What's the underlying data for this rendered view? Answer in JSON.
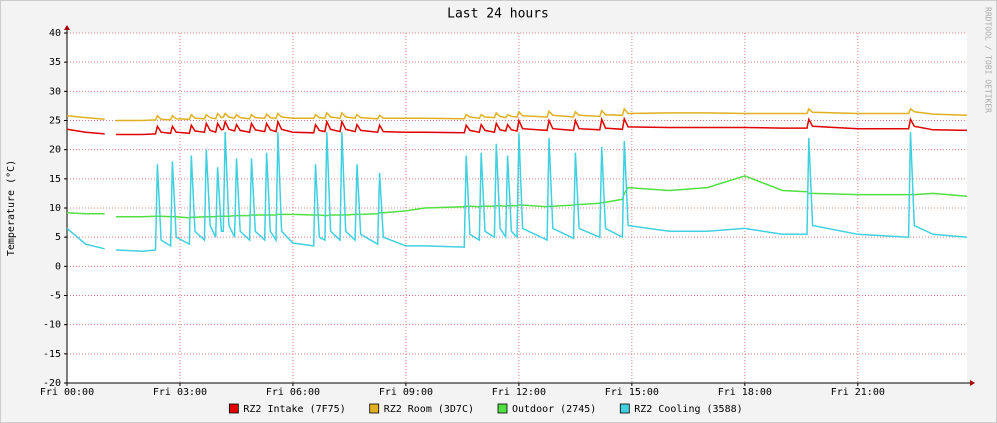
{
  "chart_data": {
    "type": "line",
    "title": "Last 24 hours",
    "y_label": "Temperature (°C)",
    "watermark": "RRDTOOL / TOBI OETIKER",
    "x": [
      0,
      0.5,
      1.0,
      1.1,
      1.3,
      2.0,
      2.35,
      2.4,
      2.5,
      2.75,
      2.8,
      2.9,
      3.25,
      3.3,
      3.4,
      3.65,
      3.7,
      3.8,
      3.95,
      4.0,
      4.1,
      4.15,
      4.2,
      4.3,
      4.45,
      4.5,
      4.6,
      4.85,
      4.9,
      5.0,
      5.25,
      5.3,
      5.4,
      5.55,
      5.6,
      5.7,
      6.0,
      6.55,
      6.6,
      6.7,
      6.85,
      6.9,
      7.0,
      7.25,
      7.3,
      7.4,
      7.65,
      7.7,
      7.8,
      8.25,
      8.3,
      8.4,
      9.0,
      9.5,
      10.55,
      10.6,
      10.7,
      10.95,
      11.0,
      11.1,
      11.35,
      11.4,
      11.5,
      11.65,
      11.7,
      11.8,
      11.95,
      12.0,
      12.1,
      12.75,
      12.8,
      12.9,
      13.45,
      13.5,
      13.6,
      14.15,
      14.2,
      14.3,
      14.75,
      14.8,
      14.9,
      16.0,
      17.0,
      18.0,
      19.0,
      19.65,
      19.7,
      19.8,
      21.0,
      22.35,
      22.4,
      22.5,
      23.0,
      23.9
    ],
    "series": [
      {
        "name": "RZ2 Intake (7F75)",
        "color": "#e00000",
        "values": [
          23.5,
          23,
          22.7,
          null,
          22.6,
          22.6,
          22.7,
          24,
          23,
          22.8,
          24,
          23,
          22.8,
          24.2,
          23.2,
          23,
          24.5,
          23.3,
          23,
          24.5,
          23.4,
          23.5,
          24.8,
          23.5,
          23.2,
          24.3,
          23.3,
          23,
          24.5,
          23.4,
          23.1,
          24.5,
          23.4,
          23.1,
          24.8,
          23.5,
          23,
          22.9,
          24.3,
          23.3,
          23.1,
          24.8,
          23.5,
          23.1,
          24.8,
          23.5,
          23.1,
          24.3,
          23.3,
          23,
          24.2,
          23.1,
          23,
          23,
          22.9,
          24.2,
          23.3,
          23,
          24.3,
          23.3,
          23,
          24.5,
          23.4,
          23.2,
          24.3,
          23.4,
          23.2,
          25,
          23.6,
          23.3,
          25,
          23.6,
          23.3,
          25,
          23.6,
          23.4,
          25.2,
          23.7,
          23.5,
          25.3,
          23.9,
          23.8,
          23.8,
          23.8,
          23.7,
          23.7,
          25.2,
          24,
          23.6,
          23.6,
          25.2,
          24,
          23.4,
          23.3
        ]
      },
      {
        "name": "RZ2 Room (3D7C)",
        "color": "#e0b020",
        "values": [
          25.8,
          25.5,
          25.2,
          null,
          25,
          25,
          25.1,
          25.8,
          25.2,
          25.1,
          25.8,
          25.3,
          25.2,
          26,
          25.4,
          25.3,
          26,
          25.5,
          25.3,
          26.2,
          25.5,
          25.6,
          26.2,
          25.6,
          25.4,
          26,
          25.5,
          25.3,
          26,
          25.5,
          25.4,
          26.1,
          25.5,
          25.4,
          26.2,
          25.6,
          25.4,
          25.4,
          26,
          25.5,
          25.4,
          26.3,
          25.6,
          25.4,
          26.3,
          25.6,
          25.4,
          26,
          25.5,
          25.3,
          25.9,
          25.4,
          25.4,
          25.4,
          25.3,
          26,
          25.6,
          25.4,
          26,
          25.6,
          25.5,
          26.3,
          25.7,
          25.5,
          26,
          25.7,
          25.6,
          26.5,
          25.8,
          25.6,
          26.6,
          25.9,
          25.6,
          26.5,
          25.9,
          25.7,
          26.7,
          26,
          25.9,
          27,
          26.2,
          26.3,
          26.3,
          26.2,
          26.2,
          26.2,
          27,
          26.4,
          26.2,
          26.2,
          27,
          26.5,
          26.1,
          25.9
        ]
      },
      {
        "name": "Outdoor (2745)",
        "color": "#50e040",
        "values": [
          9.2,
          9,
          9,
          null,
          8.5,
          8.5,
          8.6,
          8.6,
          8.6,
          8.5,
          8.5,
          8.5,
          8.3,
          8.4,
          8.4,
          8.5,
          8.5,
          8.5,
          8.5,
          8.6,
          8.6,
          8.6,
          8.6,
          8.6,
          8.7,
          8.7,
          8.7,
          8.7,
          8.8,
          8.8,
          8.8,
          8.8,
          8.8,
          8.8,
          8.9,
          8.9,
          8.9,
          8.8,
          8.8,
          8.8,
          8.7,
          8.7,
          8.8,
          8.8,
          8.8,
          8.8,
          8.9,
          8.9,
          8.9,
          9,
          9.2,
          9.2,
          9.5,
          10,
          10.2,
          10.3,
          10.3,
          10.2,
          10.3,
          10.3,
          10.3,
          10.4,
          10.4,
          10.3,
          10.4,
          10.4,
          10.4,
          10.5,
          10.5,
          10.2,
          10.3,
          10.3,
          10.5,
          10.6,
          10.6,
          10.8,
          10.9,
          11,
          11.5,
          12.5,
          13.5,
          13,
          13.5,
          15.5,
          13,
          12.8,
          12.5,
          12.5,
          12.3,
          12.3,
          12.3,
          12.3,
          12.5,
          12
        ]
      },
      {
        "name": "RZ2 Cooling (3588)",
        "color": "#40d0e0",
        "values": [
          6.5,
          3.8,
          3.0,
          null,
          2.8,
          2.6,
          2.8,
          17.5,
          4.5,
          3.5,
          18,
          5,
          3.8,
          19,
          6,
          4.5,
          20,
          7,
          5,
          17,
          6,
          6,
          23,
          7,
          5,
          18.5,
          6,
          4.5,
          18.5,
          6,
          4.5,
          19.5,
          6,
          4.5,
          23,
          6,
          4,
          3.5,
          17.5,
          5,
          4.5,
          23,
          6,
          4.5,
          23,
          6,
          4.5,
          17.5,
          5.5,
          3.8,
          16,
          5,
          3.5,
          3.5,
          3.3,
          19,
          5.5,
          4.5,
          19.5,
          6,
          5,
          21,
          6.5,
          5,
          19,
          6,
          5,
          22.8,
          6.5,
          4.5,
          22,
          6.5,
          4.8,
          19.5,
          6.5,
          5,
          20.5,
          6.5,
          5,
          21.5,
          7,
          6,
          6,
          6.5,
          5.5,
          5.5,
          22,
          7,
          5.5,
          5,
          23,
          7,
          5.5,
          5
        ]
      }
    ],
    "xlim": [
      0,
      23.9
    ],
    "ylim": [
      -20,
      40
    ],
    "xticks": [
      {
        "value": 0,
        "label": "Fri 00:00"
      },
      {
        "value": 3,
        "label": "Fri 03:00"
      },
      {
        "value": 6,
        "label": "Fri 06:00"
      },
      {
        "value": 9,
        "label": "Fri 09:00"
      },
      {
        "value": 12,
        "label": "Fri 12:00"
      },
      {
        "value": 15,
        "label": "Fri 15:00"
      },
      {
        "value": 18,
        "label": "Fri 18:00"
      },
      {
        "value": 21,
        "label": "Fri 21:00"
      }
    ],
    "yticks": [
      -20,
      -15,
      -10,
      -5,
      0,
      5,
      10,
      15,
      20,
      25,
      30,
      35,
      40
    ],
    "grid": true
  }
}
